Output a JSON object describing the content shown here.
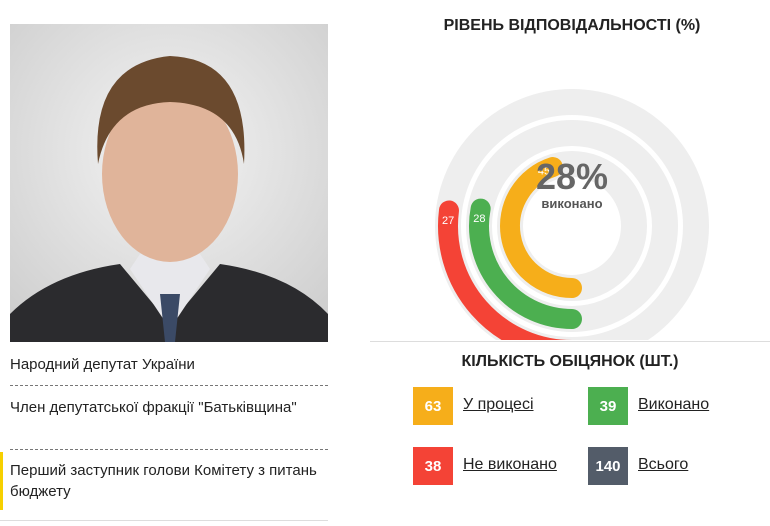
{
  "profile": {
    "roles": [
      "Народний депутат України",
      "Член депутатської фракції \"Батьківщина\"",
      "Перший заступник голови Комітету з питань бюджету"
    ]
  },
  "chart_data": {
    "type": "radial-bar",
    "title": "РІВЕНЬ ВІДПОВІДАЛЬНОСТІ (%)",
    "values": [
      45,
      28,
      27
    ],
    "colors": [
      "#f6ae1a",
      "#4caf50",
      "#f44336"
    ],
    "lim": [
      0,
      100
    ],
    "center": {
      "value": 28,
      "label": "28%"
    },
    "center_caption": "виконано"
  },
  "counts": {
    "title": "КІЛЬКІСТЬ ОБІЦЯНОК (ШТ.)",
    "items": [
      {
        "value": 63,
        "label": "У процесі",
        "color": "#f6ae1a"
      },
      {
        "value": 39,
        "label": "Виконано",
        "color": "#4caf50"
      },
      {
        "value": 38,
        "label": "Не виконано",
        "color": "#f44336"
      },
      {
        "value": 140,
        "label": "Всього",
        "color": "#535c69"
      }
    ]
  }
}
